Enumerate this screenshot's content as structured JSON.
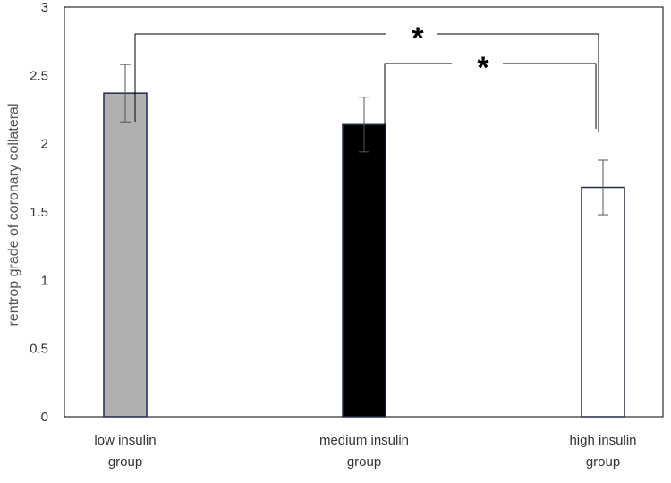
{
  "chart_data": {
    "type": "bar",
    "title": "",
    "xlabel": "",
    "ylabel": "rentrop grade of coronary collateral",
    "categories": [
      [
        "low insulin",
        "group"
      ],
      [
        "medium insulin",
        "group"
      ],
      [
        "high insulin",
        "group"
      ]
    ],
    "values": [
      2.37,
      2.14,
      1.68
    ],
    "errors": [
      0.21,
      0.2,
      0.2
    ],
    "bar_colors": [
      "#b0b0b0",
      "#000000",
      "#ffffff"
    ],
    "bar_edge_color": "#1f2d4a",
    "ylim": [
      0,
      3
    ],
    "yticks": [
      "0",
      "0.5",
      "1",
      "1.5",
      "2",
      "2.5",
      "3"
    ],
    "grid": false,
    "significance": [
      {
        "from": 0,
        "to": 2,
        "label": "*"
      },
      {
        "from": 1,
        "to": 2,
        "label": "*"
      }
    ]
  }
}
